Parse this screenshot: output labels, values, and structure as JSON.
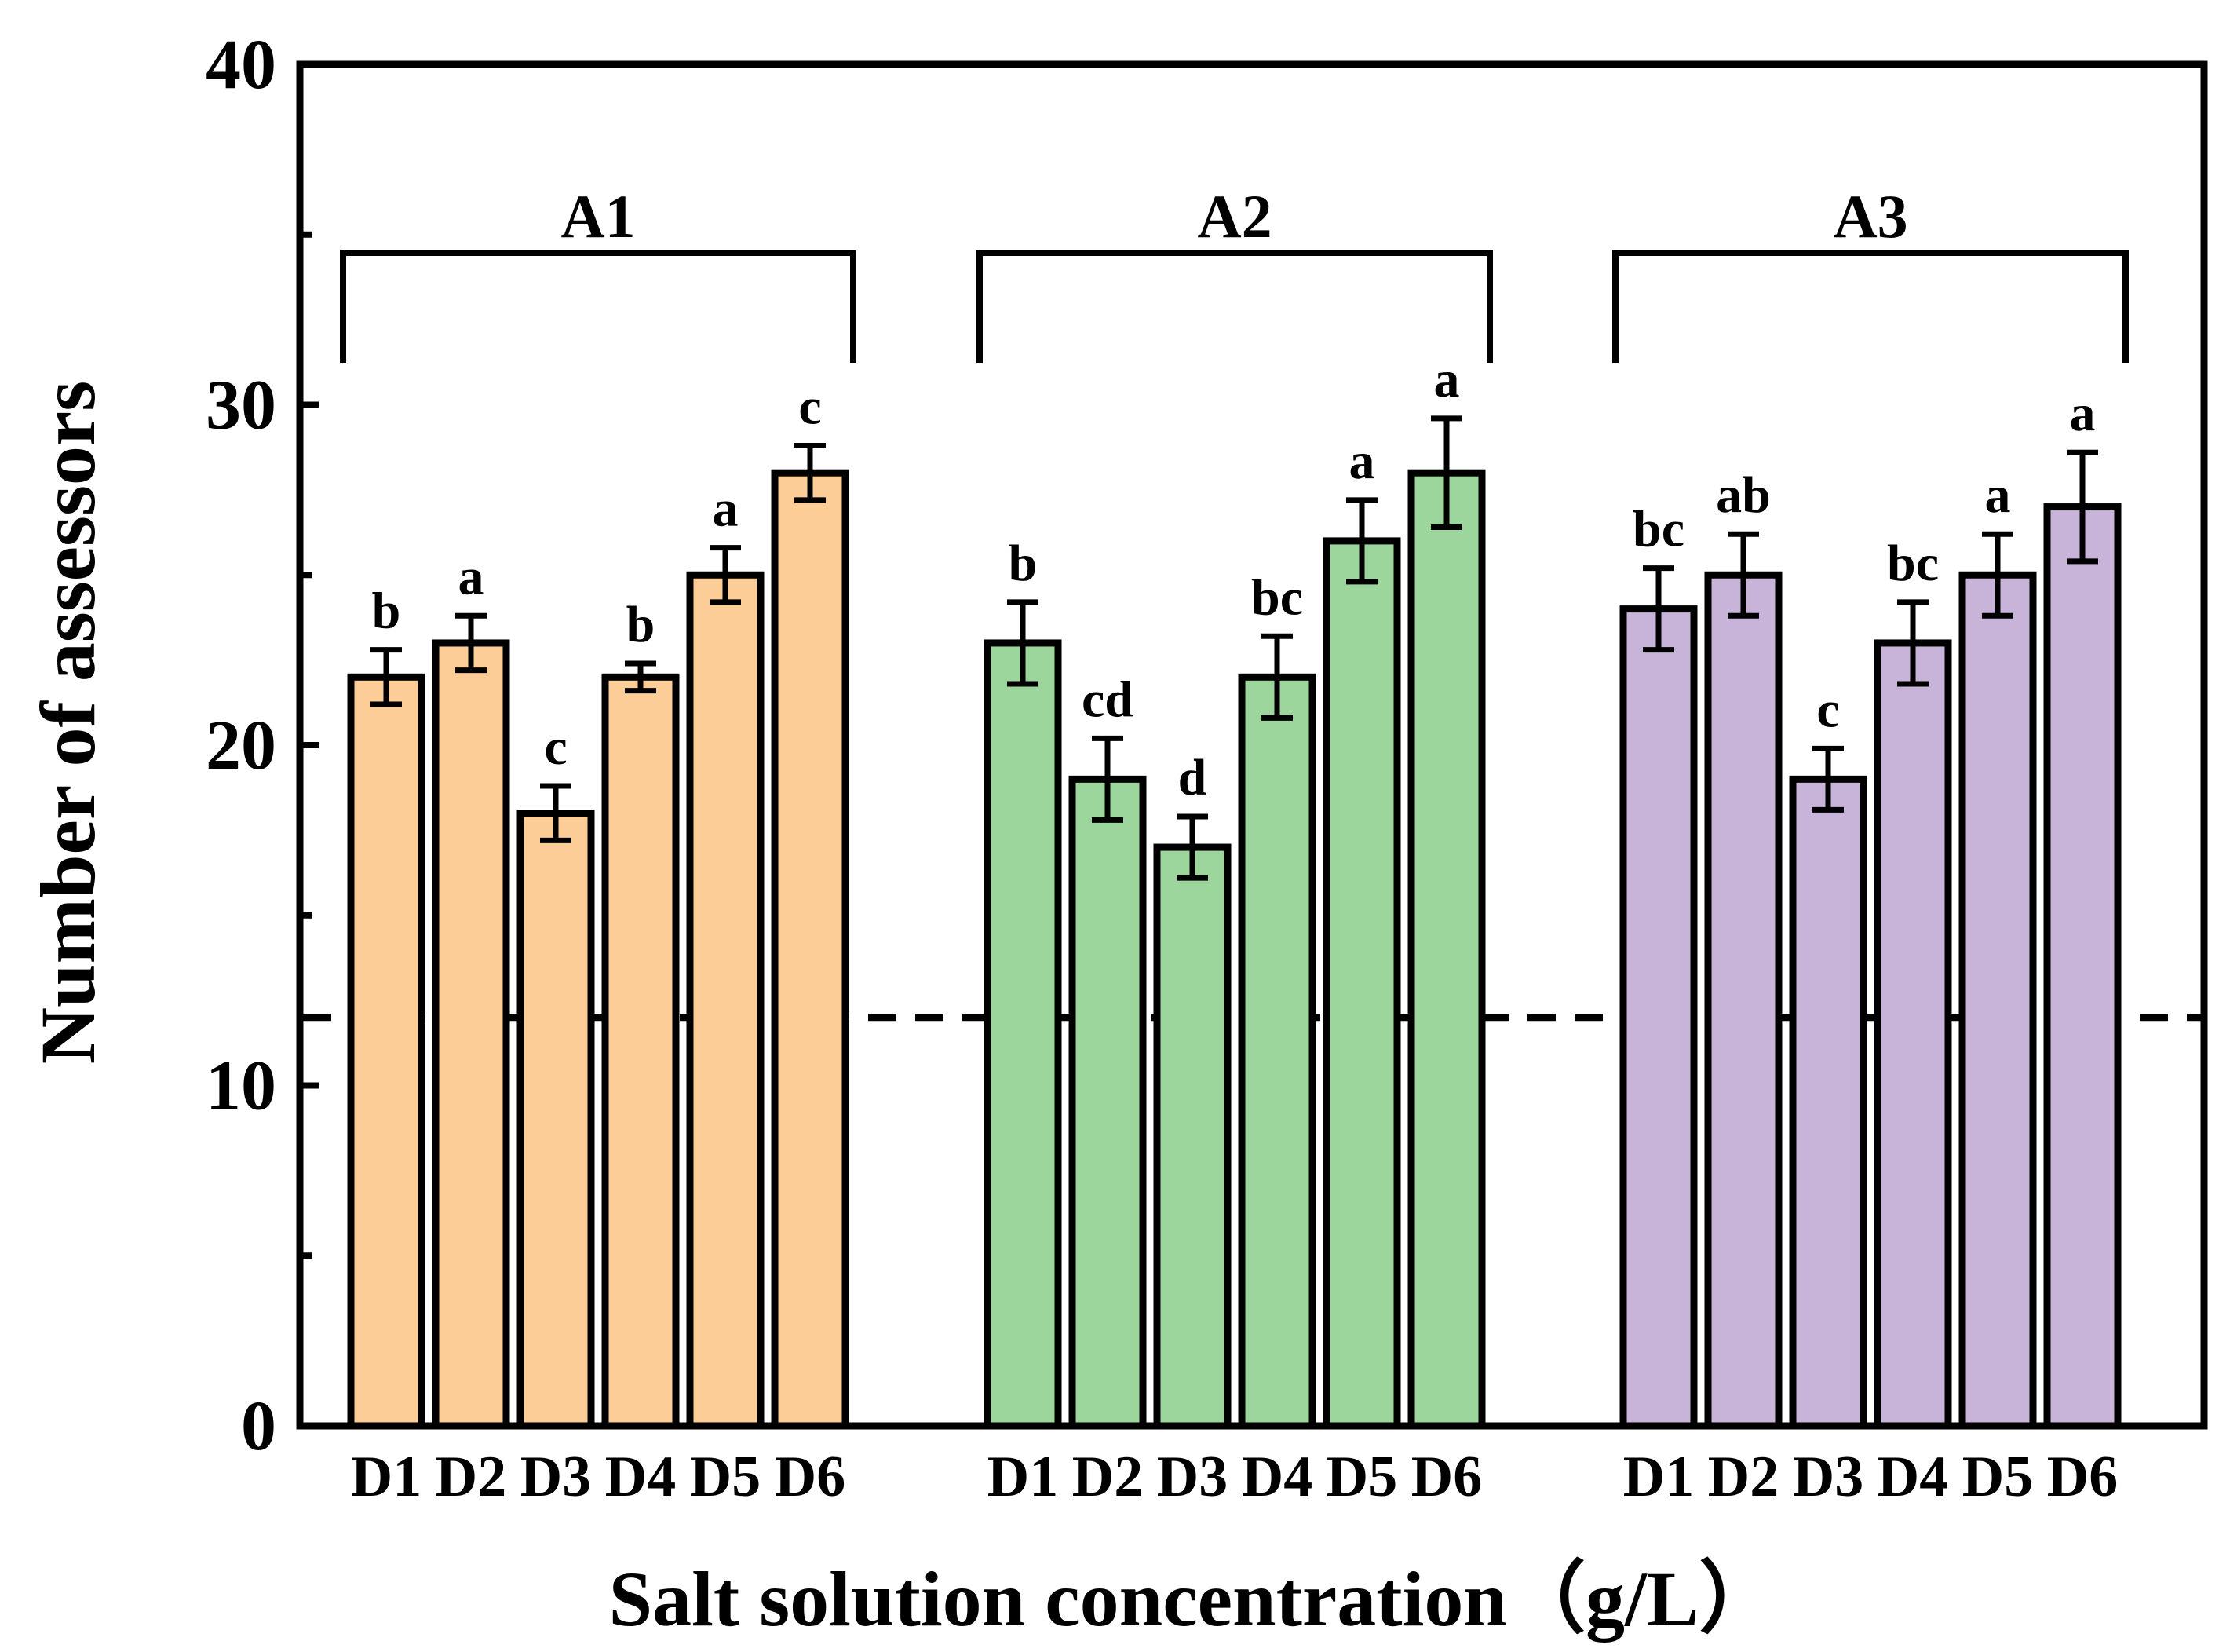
{
  "chart_data": {
    "type": "bar",
    "xlabel": "Salt solution concentration（g/L）",
    "ylabel": "Number of assessors",
    "ylim": [
      0,
      40
    ],
    "y_ticks": [
      0,
      10,
      20,
      30,
      40
    ],
    "grid": false,
    "reference_line": {
      "y": 12,
      "style": "dashed"
    },
    "categories": [
      "D1",
      "D2",
      "D3",
      "D4",
      "D5",
      "D6"
    ],
    "groups": [
      {
        "name": "A1",
        "color": "#FCCD96",
        "values": [
          22,
          23,
          18,
          22,
          25,
          28
        ],
        "errors": [
          0.8,
          0.8,
          0.8,
          0.4,
          0.8,
          0.8
        ],
        "letters": [
          "b",
          "a",
          "c",
          "b",
          "a",
          "c"
        ]
      },
      {
        "name": "A2",
        "color": "#9DD69D",
        "values": [
          23,
          19,
          17,
          22,
          26,
          28
        ],
        "errors": [
          1.2,
          1.2,
          0.9,
          1.2,
          1.2,
          1.6
        ],
        "letters": [
          "b",
          "cd",
          "d",
          "bc",
          "a",
          "a"
        ]
      },
      {
        "name": "A3",
        "color": "#C7B4D8",
        "values": [
          24,
          25,
          19,
          23,
          25,
          27
        ],
        "errors": [
          1.2,
          1.2,
          0.9,
          1.2,
          1.2,
          1.6
        ],
        "letters": [
          "bc",
          "ab",
          "c",
          "bc",
          "a",
          "a"
        ]
      }
    ]
  }
}
